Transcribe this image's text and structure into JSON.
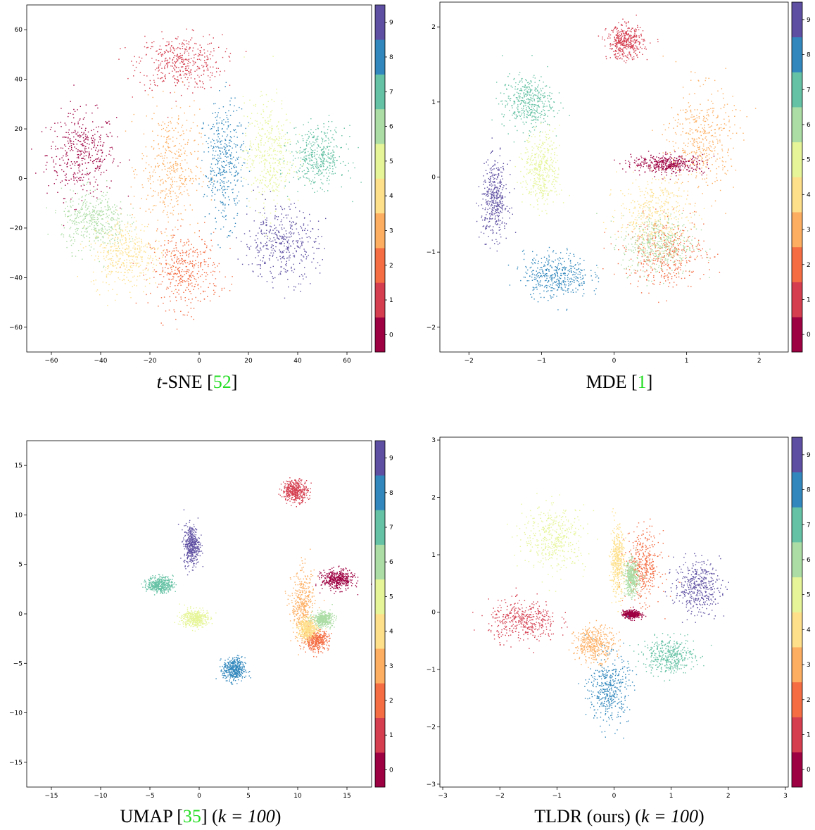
{
  "figure": {
    "colormap": "Spectral",
    "class_colors": [
      "#9e0142",
      "#d53e4f",
      "#f46d43",
      "#fdae61",
      "#fee08b",
      "#e6f598",
      "#abdda4",
      "#66c2a5",
      "#3288bd",
      "#5e4fa2"
    ],
    "colorbar_ticks": [
      "0",
      "1",
      "2",
      "3",
      "4",
      "5",
      "6",
      "7",
      "8",
      "9"
    ]
  },
  "captions": {
    "tsne": {
      "prefix": "",
      "math": "t",
      "name": "-SNE [",
      "ref": "52",
      "suffix": "]",
      "extra": ""
    },
    "mde": {
      "name": "MDE [",
      "ref": "1",
      "suffix": "]"
    },
    "umap": {
      "name": "UMAP [",
      "ref": "35",
      "suffix": "] (",
      "math": "k = 100",
      "end": ")"
    },
    "tldr": {
      "name": "TLDR (ours) (",
      "math": "k = 100",
      "end": ")"
    }
  },
  "chart_data": [
    {
      "type": "scatter",
      "id": "tsne",
      "title": "",
      "xlim": [
        -70,
        70
      ],
      "ylim": [
        -70,
        70
      ],
      "xticks": [
        -60,
        -40,
        -20,
        0,
        20,
        40,
        60
      ],
      "yticks": [
        -60,
        -40,
        -20,
        0,
        20,
        40,
        60
      ],
      "clusters": [
        {
          "class": 0,
          "cx": -48,
          "cy": 10,
          "rx": 14,
          "ry": 17
        },
        {
          "class": 1,
          "cx": -8,
          "cy": 47,
          "rx": 17,
          "ry": 11
        },
        {
          "class": 2,
          "cx": -6,
          "cy": -37,
          "rx": 14,
          "ry": 15
        },
        {
          "class": 3,
          "cx": -12,
          "cy": 4,
          "rx": 12,
          "ry": 24
        },
        {
          "class": 4,
          "cx": -30,
          "cy": -30,
          "rx": 14,
          "ry": 14
        },
        {
          "class": 5,
          "cx": 28,
          "cy": 10,
          "rx": 10,
          "ry": 22
        },
        {
          "class": 6,
          "cx": -43,
          "cy": -17,
          "rx": 13,
          "ry": 12
        },
        {
          "class": 7,
          "cx": 48,
          "cy": 9,
          "rx": 11,
          "ry": 12
        },
        {
          "class": 8,
          "cx": 10,
          "cy": 6,
          "rx": 8,
          "ry": 24
        },
        {
          "class": 9,
          "cx": 33,
          "cy": -26,
          "rx": 15,
          "ry": 15
        }
      ]
    },
    {
      "type": "scatter",
      "id": "mde",
      "title": "",
      "xlim": [
        -2.4,
        2.4
      ],
      "ylim": [
        -2.33,
        2.33
      ],
      "xticks": [
        -2,
        -1,
        0,
        1,
        2
      ],
      "yticks": [
        -2,
        -1,
        0,
        1,
        2
      ],
      "clusters": [
        {
          "class": 0,
          "cx": 0.75,
          "cy": 0.18,
          "rx": 0.5,
          "ry": 0.12
        },
        {
          "class": 1,
          "cx": 0.15,
          "cy": 1.8,
          "rx": 0.25,
          "ry": 0.22
        },
        {
          "class": 2,
          "cx": 0.7,
          "cy": -1.0,
          "rx": 0.55,
          "ry": 0.45
        },
        {
          "class": 3,
          "cx": 1.2,
          "cy": 0.5,
          "rx": 0.45,
          "ry": 0.7
        },
        {
          "class": 4,
          "cx": 0.55,
          "cy": -0.5,
          "rx": 0.5,
          "ry": 0.5
        },
        {
          "class": 5,
          "cx": -1.0,
          "cy": 0.1,
          "rx": 0.25,
          "ry": 0.5
        },
        {
          "class": 6,
          "cx": 0.6,
          "cy": -0.9,
          "rx": 0.5,
          "ry": 0.4
        },
        {
          "class": 7,
          "cx": -1.2,
          "cy": 1.0,
          "rx": 0.35,
          "ry": 0.35
        },
        {
          "class": 8,
          "cx": -0.8,
          "cy": -1.3,
          "rx": 0.45,
          "ry": 0.3
        },
        {
          "class": 9,
          "cx": -1.65,
          "cy": -0.3,
          "rx": 0.18,
          "ry": 0.5
        }
      ]
    },
    {
      "type": "scatter",
      "id": "umap",
      "title": "",
      "xlim": [
        -17.5,
        17.5
      ],
      "ylim": [
        -17.5,
        17.5
      ],
      "xticks": [
        -15,
        -10,
        -5,
        0,
        5,
        10,
        15
      ],
      "yticks": [
        -15,
        -10,
        -5,
        0,
        5,
        10,
        15
      ],
      "clusters": [
        {
          "class": 0,
          "cx": 14.0,
          "cy": 3.5,
          "rx": 1.6,
          "ry": 1.0
        },
        {
          "class": 1,
          "cx": 9.7,
          "cy": 12.5,
          "rx": 1.3,
          "ry": 1.1
        },
        {
          "class": 2,
          "cx": 11.8,
          "cy": -2.6,
          "rx": 1.3,
          "ry": 1.0
        },
        {
          "class": 3,
          "cx": 10.5,
          "cy": 0.8,
          "rx": 1.2,
          "ry": 3.5
        },
        {
          "class": 4,
          "cx": 11.0,
          "cy": -1.5,
          "rx": 1.0,
          "ry": 1.0
        },
        {
          "class": 5,
          "cx": -0.5,
          "cy": -0.4,
          "rx": 1.3,
          "ry": 0.9
        },
        {
          "class": 6,
          "cx": 12.5,
          "cy": -0.5,
          "rx": 1.0,
          "ry": 0.7
        },
        {
          "class": 7,
          "cx": -4.0,
          "cy": 3.0,
          "rx": 1.3,
          "ry": 0.8
        },
        {
          "class": 8,
          "cx": 3.5,
          "cy": -5.6,
          "rx": 1.1,
          "ry": 1.2
        },
        {
          "class": 9,
          "cx": -0.8,
          "cy": 7.0,
          "rx": 0.8,
          "ry": 2.0
        }
      ]
    },
    {
      "type": "scatter",
      "id": "tldr",
      "title": "",
      "xlim": [
        -3.05,
        3.05
      ],
      "ylim": [
        -3.05,
        3.05
      ],
      "xticks": [
        -3,
        -2,
        -1,
        0,
        1,
        2,
        3
      ],
      "yticks": [
        -3,
        -2,
        -1,
        0,
        1,
        2,
        3
      ],
      "clusters": [
        {
          "class": 0,
          "cx": 0.3,
          "cy": -0.03,
          "rx": 0.15,
          "ry": 0.07
        },
        {
          "class": 1,
          "cx": -1.6,
          "cy": -0.15,
          "rx": 0.6,
          "ry": 0.35
        },
        {
          "class": 2,
          "cx": 0.5,
          "cy": 0.8,
          "rx": 0.3,
          "ry": 0.6
        },
        {
          "class": 3,
          "cx": -0.35,
          "cy": -0.55,
          "rx": 0.35,
          "ry": 0.3
        },
        {
          "class": 4,
          "cx": 0.05,
          "cy": 0.9,
          "rx": 0.12,
          "ry": 0.6
        },
        {
          "class": 5,
          "cx": -1.05,
          "cy": 1.3,
          "rx": 0.55,
          "ry": 0.55
        },
        {
          "class": 6,
          "cx": 0.3,
          "cy": 0.6,
          "rx": 0.12,
          "ry": 0.3
        },
        {
          "class": 7,
          "cx": 0.95,
          "cy": -0.75,
          "rx": 0.45,
          "ry": 0.3
        },
        {
          "class": 8,
          "cx": -0.1,
          "cy": -1.35,
          "rx": 0.35,
          "ry": 0.6
        },
        {
          "class": 9,
          "cx": 1.45,
          "cy": 0.45,
          "rx": 0.4,
          "ry": 0.45
        }
      ]
    }
  ]
}
